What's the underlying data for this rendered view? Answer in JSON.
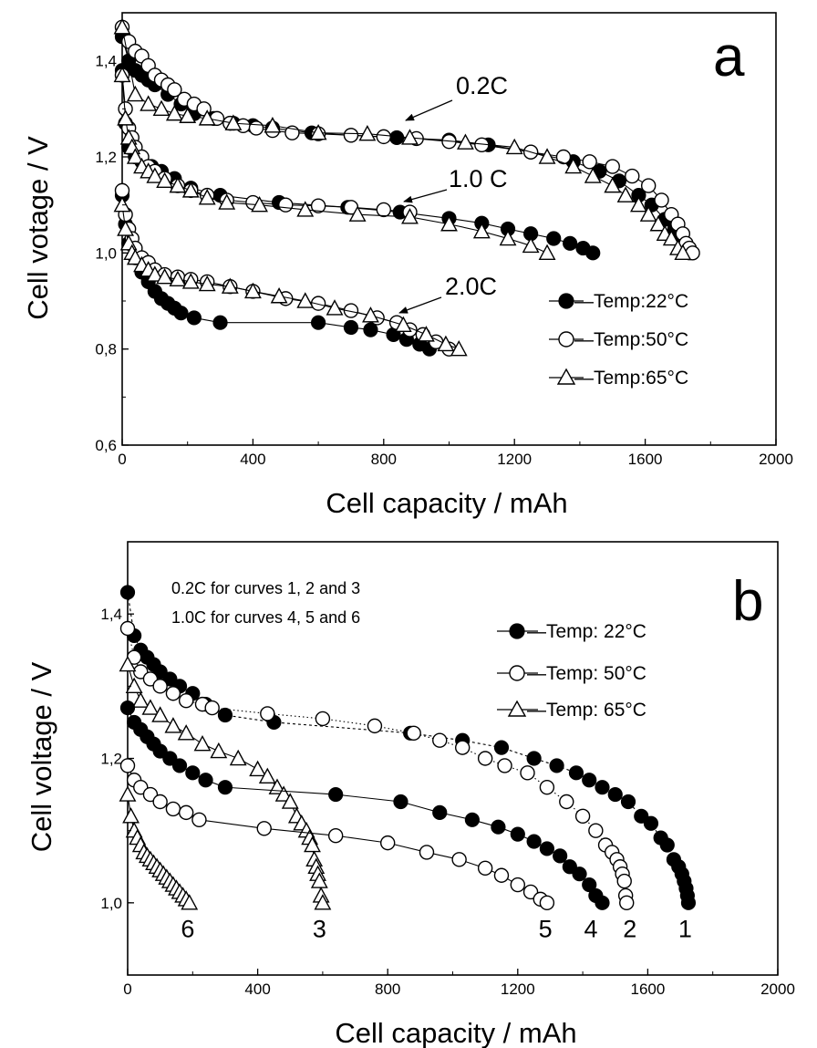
{
  "chart_data": [
    {
      "type": "scatter",
      "panel": "a",
      "xlabel": "Cell capacity / mAh",
      "ylabel": "Cell votage / V",
      "xlim": [
        0,
        2000
      ],
      "ylim": [
        0.6,
        1.5
      ],
      "xticks": [
        {
          "value": 0,
          "label": "0"
        },
        {
          "value": 400,
          "label": "400"
        },
        {
          "value": 800,
          "label": "800"
        },
        {
          "value": 1200,
          "label": "1200"
        },
        {
          "value": 1600,
          "label": "1600"
        },
        {
          "value": 2000,
          "label": "2000"
        }
      ],
      "yticks": [
        {
          "value": 0.6,
          "label": "0,6"
        },
        {
          "value": 0.8,
          "label": "0,8"
        },
        {
          "value": 1.0,
          "label": "1,0"
        },
        {
          "value": 1.2,
          "label": "1,2"
        },
        {
          "value": 1.4,
          "label": "1,4"
        }
      ],
      "grid": false,
      "legend_position": "right",
      "legend": [
        {
          "marker": "filled-circle",
          "label": "—Temp:22°C"
        },
        {
          "marker": "open-circle",
          "label": "—Temp:50°C"
        },
        {
          "marker": "open-triangle",
          "label": "—Temp:65°C"
        }
      ],
      "annotations": [
        {
          "text": "0.2C",
          "x": 660,
          "y": 1.4,
          "arrow_to": [
            850,
            1.245
          ]
        },
        {
          "text": "1.0 C",
          "x": 660,
          "y": 1.14,
          "arrow_to": [
            845,
            1.085
          ]
        },
        {
          "text": "2.0C",
          "x": 640,
          "y": 0.91,
          "arrow_to": [
            815,
            0.855
          ]
        }
      ],
      "series": [
        {
          "marker": "filled-circle",
          "dash": "",
          "x": [
            0,
            20,
            40,
            60,
            80,
            100,
            140,
            180,
            220,
            280,
            340,
            400,
            460,
            580,
            700,
            840,
            1000,
            1120,
            1250,
            1380,
            1460,
            1520,
            1580,
            1620,
            1660,
            1690,
            1710,
            1725,
            1735
          ],
          "y": [
            1.45,
            1.4,
            1.38,
            1.37,
            1.36,
            1.35,
            1.33,
            1.31,
            1.29,
            1.28,
            1.27,
            1.265,
            1.26,
            1.25,
            1.245,
            1.24,
            1.235,
            1.225,
            1.21,
            1.19,
            1.17,
            1.15,
            1.12,
            1.1,
            1.07,
            1.05,
            1.03,
            1.01,
            1.0
          ]
        },
        {
          "marker": "open-circle",
          "dash": "",
          "x": [
            0,
            20,
            40,
            60,
            80,
            100,
            120,
            140,
            160,
            190,
            220,
            250,
            290,
            330,
            370,
            410,
            460,
            520,
            600,
            700,
            800,
            900,
            1000,
            1100,
            1250,
            1350,
            1430,
            1500,
            1560,
            1610,
            1650,
            1680,
            1700,
            1715,
            1725,
            1735,
            1745
          ],
          "y": [
            1.47,
            1.44,
            1.42,
            1.41,
            1.39,
            1.37,
            1.36,
            1.35,
            1.34,
            1.32,
            1.31,
            1.3,
            1.28,
            1.27,
            1.265,
            1.26,
            1.255,
            1.25,
            1.248,
            1.245,
            1.242,
            1.238,
            1.232,
            1.225,
            1.21,
            1.2,
            1.19,
            1.18,
            1.16,
            1.14,
            1.11,
            1.08,
            1.06,
            1.04,
            1.02,
            1.01,
            1.0
          ]
        },
        {
          "marker": "open-triangle",
          "dash": "",
          "x": [
            0,
            40,
            80,
            120,
            160,
            200,
            260,
            340,
            460,
            600,
            750,
            880,
            1050,
            1200,
            1300,
            1380,
            1440,
            1500,
            1540,
            1580,
            1610,
            1640,
            1660,
            1680,
            1700,
            1715
          ],
          "y": [
            1.47,
            1.33,
            1.31,
            1.3,
            1.29,
            1.285,
            1.28,
            1.27,
            1.265,
            1.25,
            1.248,
            1.24,
            1.23,
            1.22,
            1.2,
            1.18,
            1.16,
            1.14,
            1.12,
            1.1,
            1.08,
            1.06,
            1.04,
            1.03,
            1.01,
            1.0
          ]
        },
        {
          "marker": "filled-circle",
          "dash": "",
          "x": [
            0,
            10,
            20,
            40,
            60,
            90,
            120,
            160,
            210,
            300,
            480,
            690,
            850,
            1000,
            1100,
            1180,
            1250,
            1320,
            1370,
            1410,
            1440
          ],
          "y": [
            1.38,
            1.27,
            1.22,
            1.2,
            1.19,
            1.18,
            1.17,
            1.155,
            1.135,
            1.12,
            1.105,
            1.095,
            1.085,
            1.072,
            1.062,
            1.05,
            1.04,
            1.03,
            1.02,
            1.01,
            1.0
          ]
        },
        {
          "marker": "open-circle",
          "dash": "",
          "x": [
            0,
            10,
            20,
            30,
            40,
            60,
            80,
            100,
            130,
            170,
            210,
            260,
            320,
            400,
            500,
            600,
            700,
            800,
            880
          ],
          "y": [
            1.37,
            1.3,
            1.26,
            1.24,
            1.22,
            1.2,
            1.18,
            1.17,
            1.155,
            1.14,
            1.13,
            1.12,
            1.11,
            1.105,
            1.1,
            1.098,
            1.095,
            1.09,
            1.085
          ]
        },
        {
          "marker": "open-triangle",
          "dash": "",
          "x": [
            0,
            10,
            20,
            30,
            40,
            60,
            80,
            100,
            130,
            170,
            210,
            260,
            320,
            420,
            560,
            720,
            880,
            1000,
            1100,
            1180,
            1250,
            1300
          ],
          "y": [
            1.37,
            1.28,
            1.24,
            1.22,
            1.2,
            1.18,
            1.17,
            1.16,
            1.15,
            1.14,
            1.13,
            1.115,
            1.105,
            1.1,
            1.09,
            1.08,
            1.075,
            1.06,
            1.045,
            1.03,
            1.015,
            1.0
          ]
        },
        {
          "marker": "filled-circle",
          "dash": "",
          "x": [
            0,
            10,
            20,
            40,
            60,
            80,
            100,
            120,
            140,
            160,
            180,
            220,
            300,
            600,
            700,
            760,
            830,
            870,
            910,
            940
          ],
          "y": [
            1.12,
            1.06,
            1.02,
            0.99,
            0.96,
            0.94,
            0.92,
            0.905,
            0.895,
            0.885,
            0.875,
            0.865,
            0.855,
            0.855,
            0.845,
            0.84,
            0.83,
            0.82,
            0.81,
            0.8
          ]
        },
        {
          "marker": "open-circle",
          "dash": "",
          "x": [
            0,
            10,
            20,
            30,
            40,
            60,
            80,
            100,
            130,
            170,
            210,
            260,
            330,
            400,
            500,
            600,
            700,
            780,
            840,
            880,
            920,
            960,
            1000
          ],
          "y": [
            1.13,
            1.08,
            1.05,
            1.03,
            1.01,
            0.99,
            0.98,
            0.965,
            0.955,
            0.95,
            0.945,
            0.94,
            0.93,
            0.92,
            0.905,
            0.895,
            0.88,
            0.865,
            0.855,
            0.84,
            0.83,
            0.815,
            0.8
          ]
        },
        {
          "marker": "open-triangle",
          "dash": "",
          "x": [
            0,
            10,
            20,
            30,
            40,
            60,
            80,
            100,
            130,
            170,
            210,
            260,
            330,
            400,
            480,
            560,
            650,
            760,
            860,
            930,
            990,
            1030
          ],
          "y": [
            1.1,
            1.05,
            1.02,
            1.0,
            0.99,
            0.975,
            0.965,
            0.955,
            0.95,
            0.945,
            0.94,
            0.935,
            0.93,
            0.92,
            0.91,
            0.9,
            0.885,
            0.87,
            0.85,
            0.83,
            0.81,
            0.8
          ]
        }
      ]
    },
    {
      "type": "scatter",
      "panel": "b",
      "xlabel": "Cell capacity / mAh",
      "ylabel": "Cell voltage / V",
      "xlim": [
        0,
        2000
      ],
      "ylim": [
        0.9,
        1.5
      ],
      "xticks": [
        {
          "value": 0,
          "label": "0"
        },
        {
          "value": 400,
          "label": "400"
        },
        {
          "value": 800,
          "label": "800"
        },
        {
          "value": 1200,
          "label": "1200"
        },
        {
          "value": 1600,
          "label": "1600"
        },
        {
          "value": 2000,
          "label": "2000"
        }
      ],
      "yticks": [
        {
          "value": 1.0,
          "label": "1,0"
        },
        {
          "value": 1.2,
          "label": "1,2"
        },
        {
          "value": 1.4,
          "label": "1,4"
        }
      ],
      "grid": false,
      "legend_position": "top-right",
      "notes": [
        "0.2C for curves 1, 2 and 3",
        "1.0C for curves 4, 5 and 6"
      ],
      "legend": [
        {
          "marker": "filled-circle",
          "label": "—Temp: 22°C"
        },
        {
          "marker": "open-circle",
          "label": "—Temp: 50°C"
        },
        {
          "marker": "open-triangle",
          "label": "—Temp: 65°C"
        }
      ],
      "curve_labels": [
        {
          "text": "6",
          "x": 185,
          "y": 0.965
        },
        {
          "text": "3",
          "x": 590,
          "y": 0.965
        },
        {
          "text": "5",
          "x": 1285,
          "y": 0.965
        },
        {
          "text": "4",
          "x": 1425,
          "y": 0.965
        },
        {
          "text": "2",
          "x": 1545,
          "y": 0.965
        },
        {
          "text": "1",
          "x": 1715,
          "y": 0.965
        }
      ],
      "series": [
        {
          "marker": "filled-circle",
          "dash": "3,3",
          "x": [
            0,
            20,
            40,
            60,
            80,
            100,
            130,
            160,
            200,
            240,
            300,
            450,
            870,
            1030,
            1150,
            1250,
            1320,
            1380,
            1420,
            1460,
            1500,
            1540,
            1580,
            1610,
            1640,
            1660,
            1680,
            1695,
            1705,
            1712,
            1718,
            1722,
            1725
          ],
          "y": [
            1.43,
            1.37,
            1.35,
            1.34,
            1.33,
            1.32,
            1.31,
            1.3,
            1.29,
            1.275,
            1.26,
            1.25,
            1.235,
            1.225,
            1.215,
            1.2,
            1.19,
            1.18,
            1.17,
            1.16,
            1.15,
            1.14,
            1.12,
            1.11,
            1.09,
            1.08,
            1.06,
            1.05,
            1.04,
            1.03,
            1.02,
            1.01,
            1.0
          ]
        },
        {
          "marker": "open-circle",
          "dash": "1.5,3",
          "x": [
            0,
            20,
            40,
            70,
            100,
            140,
            180,
            230,
            260,
            430,
            600,
            760,
            880,
            960,
            1030,
            1100,
            1160,
            1230,
            1290,
            1350,
            1400,
            1440,
            1470,
            1490,
            1505,
            1515,
            1522,
            1528,
            1532,
            1535
          ],
          "y": [
            1.38,
            1.34,
            1.32,
            1.31,
            1.3,
            1.29,
            1.28,
            1.275,
            1.27,
            1.262,
            1.255,
            1.245,
            1.235,
            1.225,
            1.215,
            1.2,
            1.19,
            1.18,
            1.16,
            1.14,
            1.12,
            1.1,
            1.08,
            1.07,
            1.06,
            1.05,
            1.04,
            1.03,
            1.01,
            1.0
          ]
        },
        {
          "marker": "open-triangle",
          "dash": "",
          "x": [
            0,
            20,
            40,
            70,
            100,
            140,
            180,
            230,
            280,
            340,
            400,
            430,
            460,
            480,
            500,
            520,
            535,
            550,
            560,
            568,
            574,
            580,
            585,
            590,
            595,
            600
          ],
          "y": [
            1.33,
            1.3,
            1.28,
            1.27,
            1.26,
            1.245,
            1.235,
            1.22,
            1.21,
            1.2,
            1.185,
            1.175,
            1.16,
            1.15,
            1.14,
            1.12,
            1.11,
            1.1,
            1.09,
            1.08,
            1.06,
            1.05,
            1.04,
            1.03,
            1.01,
            1.0
          ]
        },
        {
          "marker": "filled-circle",
          "dash": "",
          "x": [
            0,
            20,
            40,
            60,
            80,
            100,
            130,
            160,
            200,
            240,
            300,
            640,
            840,
            960,
            1060,
            1140,
            1200,
            1250,
            1290,
            1330,
            1360,
            1390,
            1420,
            1440,
            1460
          ],
          "y": [
            1.27,
            1.25,
            1.24,
            1.23,
            1.22,
            1.21,
            1.2,
            1.19,
            1.18,
            1.17,
            1.16,
            1.15,
            1.14,
            1.125,
            1.115,
            1.105,
            1.095,
            1.085,
            1.075,
            1.065,
            1.05,
            1.04,
            1.025,
            1.01,
            1.0
          ]
        },
        {
          "marker": "open-circle",
          "dash": "",
          "x": [
            0,
            20,
            40,
            70,
            100,
            140,
            180,
            220,
            420,
            640,
            800,
            920,
            1020,
            1100,
            1150,
            1200,
            1240,
            1270,
            1290
          ],
          "y": [
            1.19,
            1.17,
            1.16,
            1.15,
            1.14,
            1.13,
            1.125,
            1.115,
            1.103,
            1.093,
            1.083,
            1.07,
            1.06,
            1.048,
            1.038,
            1.025,
            1.015,
            1.005,
            1.0
          ]
        },
        {
          "marker": "open-triangle",
          "dash": "",
          "x": [
            0,
            10,
            20,
            30,
            40,
            50,
            60,
            70,
            80,
            90,
            100,
            110,
            120,
            130,
            140,
            150,
            160,
            170,
            180,
            190
          ],
          "y": [
            1.15,
            1.12,
            1.1,
            1.09,
            1.08,
            1.07,
            1.065,
            1.06,
            1.055,
            1.05,
            1.045,
            1.04,
            1.035,
            1.03,
            1.025,
            1.02,
            1.015,
            1.01,
            1.005,
            1.0
          ]
        }
      ]
    }
  ],
  "panel_letters": [
    "a",
    "b"
  ]
}
